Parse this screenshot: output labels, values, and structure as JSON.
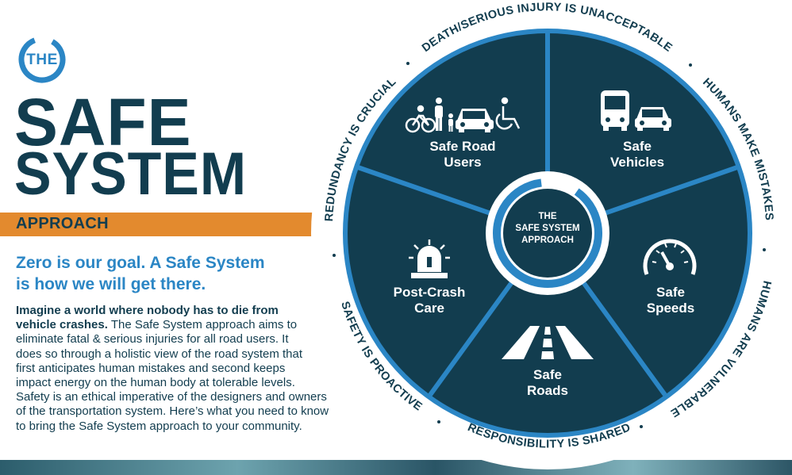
{
  "logo": {
    "the": "THE"
  },
  "title": {
    "line1": "SAFE",
    "line2": "SYSTEM",
    "approach": "APPROACH"
  },
  "subhead": {
    "line1": "Zero is our goal. A Safe System",
    "line2": "is how we will get there."
  },
  "body": {
    "bold_line1": "Imagine a world where nobody has to die from",
    "bold_line2": "vehicle crashes.",
    "line2_rest": " The Safe System approach aims to",
    "line3": "eliminate fatal & serious injuries for all road users. It",
    "line4": "does so through a holistic view of the road system that",
    "line5": "first anticipates human mistakes and second keeps",
    "line6": "impact energy on the human body at tolerable levels.",
    "line7": "Safety is an ethical imperative of the designers and owners",
    "line8": "of the transportation system. Here’s what you need to know",
    "line9": "to bring the Safe System approach to your community."
  },
  "wheel": {
    "center": {
      "line1": "THE",
      "line2": "SAFE SYSTEM",
      "line3": "APPROACH"
    },
    "segments": {
      "road_users": {
        "line1": "Safe Road",
        "line2": "Users"
      },
      "vehicles": {
        "line1": "Safe",
        "line2": "Vehicles"
      },
      "speeds": {
        "line1": "Safe",
        "line2": "Speeds"
      },
      "roads": {
        "line1": "Safe",
        "line2": "Roads"
      },
      "post_crash": {
        "line1": "Post-Crash",
        "line2": "Care"
      }
    },
    "principles": {
      "death": "DEATH/SERIOUS INJURY IS UNACCEPTABLE",
      "humans_mistakes": "HUMANS MAKE MISTAKES",
      "humans_vulnerable": "HUMANS ARE VULNERABLE",
      "responsibility": "RESPONSIBILITY IS SHARED",
      "proactive": "SAFETY IS PROACTIVE",
      "redundancy": "REDUNDANCY IS CRUCIAL"
    }
  },
  "colors": {
    "navy": "#123d4f",
    "blue": "#2b86c5",
    "orange": "#e38a2e"
  }
}
